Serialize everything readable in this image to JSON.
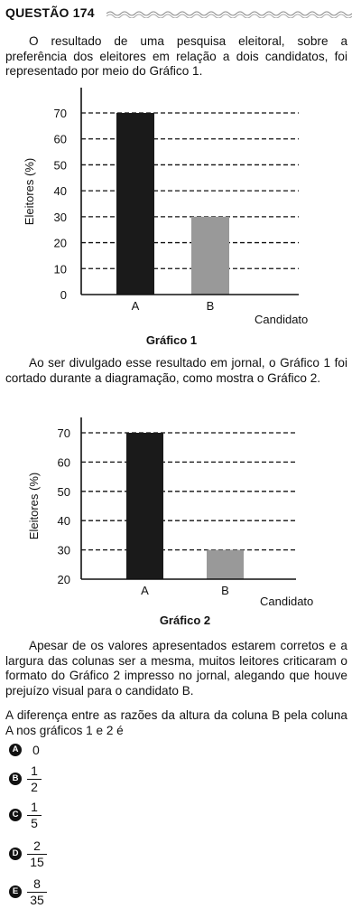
{
  "question": {
    "title": "QUESTÃO 174",
    "intro": "O resultado de uma pesquisa eleitoral, sobre a preferência dos eleitores em relação a dois candidatos, foi representado por meio do Gráfico 1.",
    "middle": "Ao ser divulgado esse resultado em jornal, o Gráfico 1 foi cortado durante a diagramação, como mostra o Gráfico 2.",
    "comment": "Apesar de os valores apresentados estarem corretos e a largura das colunas ser a mesma, muitos leitores criticaram o formato do Gráfico 2 impresso no jornal, alegando que houve prejuízo visual para o candidato B.",
    "prompt": "A diferença entre as razões da altura da coluna B pela coluna A nos gráficos 1 e 2 é"
  },
  "chart_data": [
    {
      "type": "bar",
      "title": "Gráfico 1",
      "xlabel": "Candidato",
      "ylabel": "Eleitores (%)",
      "categories": [
        "A",
        "B"
      ],
      "values": [
        70,
        30
      ],
      "bar_colors": [
        "#1a1a1a",
        "#999999"
      ],
      "ylim": [
        0,
        70
      ],
      "yticks": [
        0,
        10,
        20,
        30,
        40,
        50,
        60,
        70
      ],
      "grid": "dashed horizontal"
    },
    {
      "type": "bar",
      "title": "Gráfico 2",
      "xlabel": "Candidato",
      "ylabel": "Eleitores (%)",
      "categories": [
        "A",
        "B"
      ],
      "values": [
        70,
        30
      ],
      "bar_colors": [
        "#1a1a1a",
        "#999999"
      ],
      "ylim": [
        20,
        70
      ],
      "yticks": [
        20,
        30,
        40,
        50,
        60,
        70
      ],
      "grid": "dashed horizontal"
    }
  ],
  "options": [
    {
      "letter": "A",
      "value": "0"
    },
    {
      "letter": "B",
      "num": "1",
      "den": "2"
    },
    {
      "letter": "C",
      "num": "1",
      "den": "5"
    },
    {
      "letter": "D",
      "num": "2",
      "den": "15"
    },
    {
      "letter": "E",
      "num": "8",
      "den": "35"
    }
  ]
}
